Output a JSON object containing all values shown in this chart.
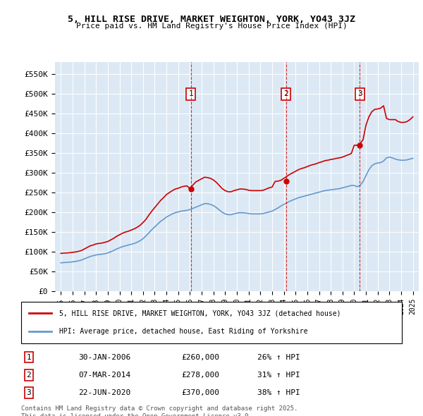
{
  "title_line1": "5, HILL RISE DRIVE, MARKET WEIGHTON, YORK, YO43 3JZ",
  "title_line2": "Price paid vs. HM Land Registry's House Price Index (HPI)",
  "ylabel": "",
  "background_color": "#dce9f5",
  "plot_bg_color": "#dce9f5",
  "red_line_color": "#cc0000",
  "blue_line_color": "#6699cc",
  "sale_marker_color": "#cc0000",
  "ylim": [
    0,
    580000
  ],
  "yticks": [
    0,
    50000,
    100000,
    150000,
    200000,
    250000,
    300000,
    350000,
    400000,
    450000,
    500000,
    550000
  ],
  "ytick_labels": [
    "£0",
    "£50K",
    "£100K",
    "£150K",
    "£200K",
    "£250K",
    "£300K",
    "£350K",
    "£400K",
    "£450K",
    "£500K",
    "£550K"
  ],
  "xlim_start": 1994.5,
  "xlim_end": 2025.5,
  "sales": [
    {
      "num": 1,
      "year": 2006.08,
      "price": 260000,
      "date_str": "30-JAN-2006",
      "price_str": "£260,000",
      "hpi_str": "26% ↑ HPI"
    },
    {
      "num": 2,
      "year": 2014.18,
      "price": 278000,
      "date_str": "07-MAR-2014",
      "price_str": "£278,000",
      "hpi_str": "31% ↑ HPI"
    },
    {
      "num": 3,
      "year": 2020.47,
      "price": 370000,
      "date_str": "22-JUN-2020",
      "price_str": "£370,000",
      "hpi_str": "38% ↑ HPI"
    }
  ],
  "legend_red_label": "5, HILL RISE DRIVE, MARKET WEIGHTON, YORK, YO43 3JZ (detached house)",
  "legend_blue_label": "HPI: Average price, detached house, East Riding of Yorkshire",
  "footnote": "Contains HM Land Registry data © Crown copyright and database right 2025.\nThis data is licensed under the Open Government Licence v3.0.",
  "hpi_data_x": [
    1995,
    1995.25,
    1995.5,
    1995.75,
    1996,
    1996.25,
    1996.5,
    1996.75,
    1997,
    1997.25,
    1997.5,
    1997.75,
    1998,
    1998.25,
    1998.5,
    1998.75,
    1999,
    1999.25,
    1999.5,
    1999.75,
    2000,
    2000.25,
    2000.5,
    2000.75,
    2001,
    2001.25,
    2001.5,
    2001.75,
    2002,
    2002.25,
    2002.5,
    2002.75,
    2003,
    2003.25,
    2003.5,
    2003.75,
    2004,
    2004.25,
    2004.5,
    2004.75,
    2005,
    2005.25,
    2005.5,
    2005.75,
    2006,
    2006.25,
    2006.5,
    2006.75,
    2007,
    2007.25,
    2007.5,
    2007.75,
    2008,
    2008.25,
    2008.5,
    2008.75,
    2009,
    2009.25,
    2009.5,
    2009.75,
    2010,
    2010.25,
    2010.5,
    2010.75,
    2011,
    2011.25,
    2011.5,
    2011.75,
    2012,
    2012.25,
    2012.5,
    2012.75,
    2013,
    2013.25,
    2013.5,
    2013.75,
    2014,
    2014.25,
    2014.5,
    2014.75,
    2015,
    2015.25,
    2015.5,
    2015.75,
    2016,
    2016.25,
    2016.5,
    2016.75,
    2017,
    2017.25,
    2017.5,
    2017.75,
    2018,
    2018.25,
    2018.5,
    2018.75,
    2019,
    2019.25,
    2019.5,
    2019.75,
    2020,
    2020.25,
    2020.5,
    2020.75,
    2021,
    2021.25,
    2021.5,
    2021.75,
    2022,
    2022.25,
    2022.5,
    2022.75,
    2023,
    2023.25,
    2023.5,
    2023.75,
    2024,
    2024.25,
    2024.5,
    2024.75,
    2025
  ],
  "hpi_data_y": [
    72000,
    72500,
    73000,
    73500,
    74500,
    75500,
    77000,
    79000,
    82000,
    85000,
    88000,
    90000,
    92000,
    93000,
    94000,
    95000,
    97000,
    100000,
    103000,
    107000,
    110000,
    113000,
    115000,
    117000,
    119000,
    121000,
    124000,
    128000,
    133000,
    140000,
    148000,
    156000,
    163000,
    170000,
    177000,
    182000,
    188000,
    192000,
    196000,
    199000,
    201000,
    203000,
    204000,
    205000,
    207000,
    210000,
    213000,
    216000,
    219000,
    222000,
    222000,
    220000,
    217000,
    212000,
    206000,
    200000,
    196000,
    194000,
    194000,
    196000,
    198000,
    199000,
    199000,
    198000,
    197000,
    196000,
    196000,
    196000,
    196000,
    197000,
    199000,
    201000,
    203000,
    207000,
    211000,
    216000,
    220000,
    224000,
    228000,
    231000,
    234000,
    237000,
    239000,
    241000,
    243000,
    245000,
    247000,
    249000,
    251000,
    253000,
    255000,
    256000,
    257000,
    258000,
    259000,
    260000,
    262000,
    264000,
    266000,
    268000,
    268000,
    265000,
    268000,
    278000,
    293000,
    308000,
    318000,
    323000,
    325000,
    326000,
    330000,
    338000,
    340000,
    338000,
    335000,
    333000,
    332000,
    332000,
    333000,
    335000,
    337000
  ],
  "red_data_x": [
    1995,
    1995.25,
    1995.5,
    1995.75,
    1996,
    1996.25,
    1996.5,
    1996.75,
    1997,
    1997.25,
    1997.5,
    1997.75,
    1998,
    1998.25,
    1998.5,
    1998.75,
    1999,
    1999.25,
    1999.5,
    1999.75,
    2000,
    2000.25,
    2000.5,
    2000.75,
    2001,
    2001.25,
    2001.5,
    2001.75,
    2002,
    2002.25,
    2002.5,
    2002.75,
    2003,
    2003.25,
    2003.5,
    2003.75,
    2004,
    2004.25,
    2004.5,
    2004.75,
    2005,
    2005.25,
    2005.5,
    2005.75,
    2006,
    2006.25,
    2006.5,
    2006.75,
    2007,
    2007.25,
    2007.5,
    2007.75,
    2008,
    2008.25,
    2008.5,
    2008.75,
    2009,
    2009.25,
    2009.5,
    2009.75,
    2010,
    2010.25,
    2010.5,
    2010.75,
    2011,
    2011.25,
    2011.5,
    2011.75,
    2012,
    2012.25,
    2012.5,
    2012.75,
    2013,
    2013.25,
    2013.5,
    2013.75,
    2014,
    2014.25,
    2014.5,
    2014.75,
    2015,
    2015.25,
    2015.5,
    2015.75,
    2016,
    2016.25,
    2016.5,
    2016.75,
    2017,
    2017.25,
    2017.5,
    2017.75,
    2018,
    2018.25,
    2018.5,
    2018.75,
    2019,
    2019.25,
    2019.5,
    2019.75,
    2020,
    2020.25,
    2020.5,
    2020.75,
    2021,
    2021.25,
    2021.5,
    2021.75,
    2022,
    2022.25,
    2022.5,
    2022.75,
    2023,
    2023.25,
    2023.5,
    2023.75,
    2024,
    2024.25,
    2024.5,
    2024.75,
    2025
  ],
  "red_data_y": [
    96000,
    96500,
    97000,
    97500,
    98500,
    99500,
    101000,
    103000,
    107000,
    111000,
    115000,
    117000,
    120000,
    121000,
    122000,
    124000,
    126000,
    130000,
    134000,
    139000,
    143000,
    147000,
    150000,
    152000,
    155000,
    158000,
    162000,
    167000,
    174000,
    182000,
    193000,
    203000,
    212000,
    221000,
    230000,
    237000,
    245000,
    250000,
    255000,
    259000,
    261000,
    264000,
    266000,
    267000,
    260000,
    269000,
    277000,
    281000,
    285000,
    289000,
    288000,
    286000,
    282000,
    276000,
    268000,
    260000,
    255000,
    252000,
    252000,
    255000,
    257000,
    259000,
    259000,
    258000,
    256000,
    255000,
    255000,
    255000,
    255000,
    256000,
    259000,
    262000,
    264000,
    278000,
    279000,
    281000,
    286000,
    291000,
    296000,
    300000,
    304000,
    308000,
    311000,
    313000,
    316000,
    319000,
    321000,
    323000,
    326000,
    328000,
    331000,
    332000,
    334000,
    335000,
    337000,
    338000,
    340000,
    343000,
    346000,
    349000,
    370000,
    370000,
    374000,
    384000,
    421000,
    442000,
    455000,
    461000,
    462000,
    464000,
    470000,
    438000,
    435000,
    435000,
    435000,
    430000,
    428000,
    428000,
    430000,
    435000,
    442000
  ]
}
